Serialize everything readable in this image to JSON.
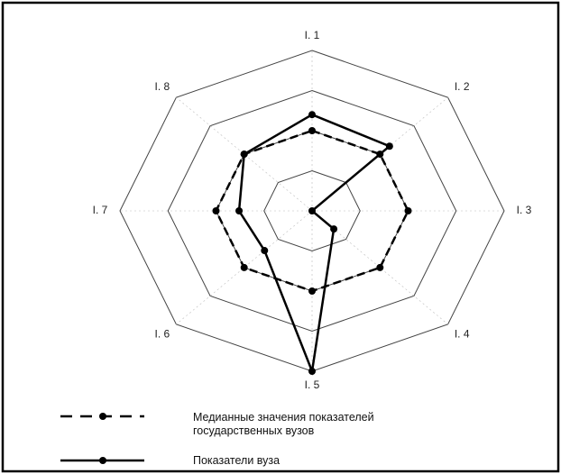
{
  "chart_data": {
    "type": "radar",
    "categories": [
      "I. 1",
      "I. 2",
      "I. 3",
      "I. 4",
      "I. 5",
      "I. 6",
      "I. 7",
      "I. 8"
    ],
    "rlim": [
      0,
      1
    ],
    "rticks": [
      0.25,
      0.5,
      0.75,
      1
    ],
    "grid": true,
    "series": [
      {
        "name": "Медианные значения показателей государственных вузов",
        "color": "#000000",
        "dash": true,
        "values": [
          0.5,
          0.5,
          0.5,
          0.5,
          0.5,
          0.5,
          0.5,
          0.5
        ]
      },
      {
        "name": "Показатели вуза",
        "color": "#000000",
        "dash": false,
        "values": [
          0.6,
          0.57,
          0,
          0.16,
          1,
          0.35,
          0.38,
          0.5
        ]
      }
    ]
  }
}
